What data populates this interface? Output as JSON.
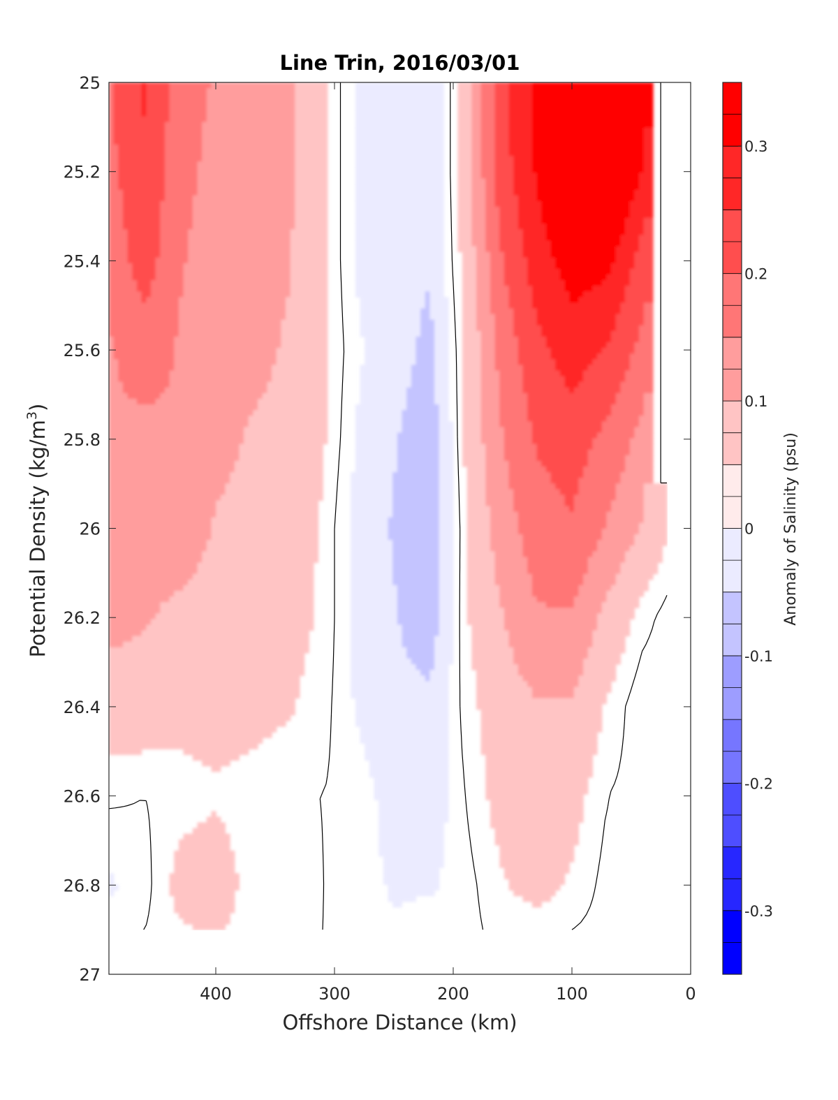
{
  "chart_data": {
    "type": "filled-contour",
    "title": "Line Trin, 2016/03/01",
    "xlabel": "Offshore Distance (km)",
    "ylabel_main": "Potential Density (kg/m",
    "ylabel_sup": "3",
    "ylabel_close": ")",
    "colorbar_label": "Anomaly of Salinity (psu)",
    "xlim": [
      490,
      0
    ],
    "ylim": [
      25,
      27
    ],
    "x_reversed": true,
    "y_reversed": true,
    "xticks": [
      400,
      300,
      200,
      100,
      0
    ],
    "xtick_labels": [
      "400",
      "300",
      "200",
      "100",
      "0"
    ],
    "yticks": [
      25,
      25.2,
      25.4,
      25.6,
      25.8,
      26,
      26.2,
      26.4,
      26.6,
      26.8,
      27
    ],
    "ytick_labels": [
      "25",
      "25.2",
      "25.4",
      "25.6",
      "25.8",
      "26",
      "26.2",
      "26.4",
      "26.6",
      "26.8",
      "27"
    ],
    "colorbar": {
      "range": [
        -0.35,
        0.35
      ],
      "ticks": [
        0.3,
        0.2,
        0.1,
        0,
        -0.1,
        -0.2,
        -0.3
      ],
      "tick_labels": [
        "0.3",
        "0.2",
        "0.1",
        "0",
        "-0.1",
        "-0.2",
        "-0.3"
      ],
      "levels": [
        -0.35,
        -0.3,
        -0.25,
        -0.2,
        -0.15,
        -0.1,
        -0.05,
        0,
        0.05,
        0.1,
        0.15,
        0.2,
        0.25,
        0.3,
        0.35
      ]
    },
    "grid": {
      "x": [
        490,
        460,
        430,
        400,
        370,
        340,
        310,
        280,
        250,
        220,
        190,
        160,
        130,
        100,
        70,
        40,
        20
      ],
      "y": [
        25.0,
        25.2,
        25.4,
        25.6,
        25.8,
        26.0,
        26.2,
        26.4,
        26.6,
        26.8,
        26.9,
        27.0
      ],
      "z": [
        [
          0.17,
          0.23,
          0.15,
          0.12,
          0.1,
          0.09,
          0.03,
          -0.03,
          -0.06,
          -0.07,
          0.05,
          0.21,
          0.29,
          0.36,
          0.38,
          0.3,
          null
        ],
        [
          0.16,
          0.22,
          0.14,
          0.11,
          0.1,
          0.09,
          0.03,
          -0.03,
          -0.06,
          -0.07,
          0.05,
          0.2,
          0.28,
          0.35,
          0.37,
          0.27,
          null
        ],
        [
          0.14,
          0.2,
          0.13,
          0.1,
          0.09,
          0.08,
          0.03,
          -0.03,
          -0.05,
          -0.07,
          0.04,
          0.17,
          0.25,
          0.3,
          0.29,
          0.2,
          null
        ],
        [
          0.12,
          0.15,
          0.12,
          0.09,
          0.09,
          0.07,
          0.03,
          -0.02,
          -0.05,
          -0.09,
          0.03,
          0.14,
          0.21,
          0.25,
          0.22,
          0.16,
          null
        ],
        [
          0.12,
          0.11,
          0.12,
          0.09,
          0.07,
          0.06,
          0.03,
          -0.03,
          -0.07,
          -0.11,
          0.03,
          0.12,
          0.18,
          0.2,
          0.16,
          0.11,
          null
        ],
        [
          0.11,
          0.1,
          0.11,
          0.07,
          0.06,
          0.05,
          0.02,
          -0.04,
          -0.08,
          -0.12,
          0.02,
          0.1,
          0.15,
          0.17,
          0.12,
          0.07,
          0.03
        ],
        [
          0.09,
          0.08,
          0.06,
          0.05,
          0.05,
          0.04,
          0.02,
          -0.04,
          -0.07,
          -0.11,
          0.02,
          0.07,
          0.12,
          0.12,
          0.06,
          0.01,
          -0.01
        ],
        [
          0.05,
          0.05,
          0.04,
          0.04,
          0.04,
          0.03,
          0.01,
          -0.03,
          -0.06,
          -0.06,
          0.01,
          0.05,
          0.07,
          0.07,
          0.02,
          -0.02,
          -0.01
        ],
        [
          0.005,
          0.0,
          0.01,
          0.02,
          0.01,
          0.0,
          0.0,
          -0.01,
          -0.04,
          -0.05,
          0.0,
          0.04,
          0.05,
          0.04,
          0.0,
          -0.01,
          0.0
        ],
        [
          -0.03,
          -0.01,
          0.04,
          0.05,
          0.01,
          0.02,
          0.0,
          -0.01,
          -0.03,
          -0.03,
          -0.01,
          0.02,
          0.04,
          0.02,
          -0.01,
          0.0,
          0.0
        ],
        [
          -0.01,
          0.0,
          0.02,
          0.03,
          0.01,
          0.01,
          0.0,
          -0.01,
          -0.02,
          -0.01,
          -0.01,
          0.01,
          0.01,
          0.0,
          -0.01,
          0.0,
          0.0
        ],
        [
          null,
          null,
          null,
          null,
          null,
          null,
          null,
          null,
          null,
          null,
          null,
          null,
          null,
          null,
          null,
          null,
          null
        ]
      ]
    },
    "zero_contour": "solid black line",
    "colors": {
      "max": "#ff0000",
      "zero": "#ffffff",
      "min": "#0000ff"
    }
  }
}
